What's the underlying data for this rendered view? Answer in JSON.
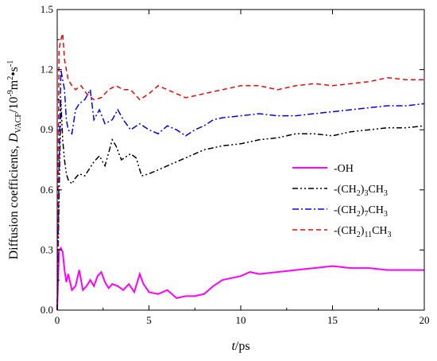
{
  "chart_data": {
    "type": "line",
    "xlabel_italic": "t",
    "xlabel_unit": "/ps",
    "ylabel_main": "Diffusion coefficients, ",
    "ylabel_symbol": "D",
    "ylabel_symbol_sub": "VACF",
    "ylabel_unit_a": "/10",
    "ylabel_unit_exp": "-9",
    "ylabel_unit_b": "m",
    "ylabel_unit_b_exp": "2",
    "ylabel_unit_c": "•s",
    "ylabel_unit_c_exp": "-1",
    "xlim": [
      0,
      20
    ],
    "ylim": [
      0,
      1.5
    ],
    "xticks": [
      0,
      5,
      10,
      15,
      20
    ],
    "xtick_labels": [
      "0",
      "5",
      "10",
      "15",
      "20"
    ],
    "yticks": [
      0.0,
      0.3,
      0.6,
      0.9,
      1.2,
      1.5
    ],
    "ytick_labels": [
      "0.0",
      "0.3",
      "0.6",
      "0.9",
      "1.2",
      "1.5"
    ],
    "grid": false,
    "legend_position": "center-right",
    "series": [
      {
        "legend_parts": [
          "-OH"
        ],
        "color": "#ff00ff",
        "style": "solid",
        "x": [
          0,
          0.1,
          0.2,
          0.3,
          0.4,
          0.5,
          0.6,
          0.8,
          1.0,
          1.2,
          1.4,
          1.6,
          1.8,
          2.0,
          2.2,
          2.4,
          2.6,
          2.8,
          3.0,
          3.3,
          3.6,
          3.9,
          4.2,
          4.5,
          4.7,
          5.0,
          5.5,
          6.0,
          6.5,
          7.0,
          7.5,
          8.0,
          8.5,
          9.0,
          9.5,
          10.0,
          10.5,
          11.0,
          12.0,
          13.0,
          14.0,
          15.0,
          16.0,
          17.0,
          18.0,
          19.0,
          20.0
        ],
        "y": [
          0.0,
          0.3,
          0.31,
          0.29,
          0.2,
          0.14,
          0.18,
          0.1,
          0.12,
          0.2,
          0.1,
          0.12,
          0.15,
          0.12,
          0.17,
          0.19,
          0.14,
          0.11,
          0.13,
          0.12,
          0.1,
          0.13,
          0.09,
          0.18,
          0.13,
          0.09,
          0.08,
          0.1,
          0.06,
          0.07,
          0.07,
          0.08,
          0.12,
          0.15,
          0.16,
          0.17,
          0.19,
          0.18,
          0.19,
          0.2,
          0.21,
          0.22,
          0.21,
          0.21,
          0.2,
          0.2,
          0.2
        ]
      },
      {
        "legend_parts": [
          "-(CH",
          "2",
          ")",
          "3",
          "CH",
          "3"
        ],
        "color": "#000000",
        "style": "dashdotdot",
        "x": [
          0,
          0.1,
          0.2,
          0.3,
          0.4,
          0.5,
          0.6,
          0.8,
          1.0,
          1.2,
          1.5,
          2.0,
          2.3,
          2.6,
          3.0,
          3.2,
          3.5,
          4.0,
          4.3,
          4.6,
          5.0,
          5.5,
          6.0,
          6.5,
          7.0,
          7.5,
          8.0,
          9.0,
          10.0,
          11.0,
          12.0,
          13.0,
          14.0,
          15.0,
          16.0,
          17.0,
          18.0,
          19.0,
          20.0
        ],
        "y": [
          0.0,
          0.55,
          1.05,
          0.85,
          0.75,
          0.68,
          0.65,
          0.63,
          0.66,
          0.68,
          0.67,
          0.74,
          0.77,
          0.72,
          0.85,
          0.82,
          0.75,
          0.78,
          0.76,
          0.67,
          0.68,
          0.7,
          0.72,
          0.74,
          0.76,
          0.78,
          0.8,
          0.82,
          0.83,
          0.85,
          0.86,
          0.88,
          0.88,
          0.87,
          0.89,
          0.9,
          0.91,
          0.91,
          0.92
        ]
      },
      {
        "legend_parts": [
          "-(CH",
          "2",
          ")",
          "7",
          "CH",
          "3"
        ],
        "color": "#0000ff",
        "style": "dashdot",
        "x": [
          0,
          0.1,
          0.2,
          0.3,
          0.4,
          0.5,
          0.6,
          0.8,
          1.0,
          1.2,
          1.5,
          1.8,
          2.0,
          2.3,
          2.6,
          3.0,
          3.3,
          3.6,
          4.0,
          4.5,
          5.0,
          5.5,
          6.0,
          6.5,
          7.0,
          7.5,
          8.0,
          8.5,
          9.0,
          10.0,
          11.0,
          12.0,
          13.0,
          14.0,
          15.0,
          16.0,
          17.0,
          18.0,
          19.0,
          20.0
        ],
        "y": [
          0.0,
          0.7,
          1.2,
          1.15,
          1.1,
          0.95,
          0.9,
          0.88,
          1.0,
          1.03,
          1.05,
          1.1,
          0.95,
          1.0,
          0.93,
          0.95,
          1.0,
          0.95,
          0.9,
          0.93,
          0.9,
          0.88,
          0.92,
          0.9,
          0.87,
          0.9,
          0.92,
          0.95,
          0.96,
          0.97,
          0.98,
          0.97,
          0.97,
          0.98,
          0.99,
          1.0,
          1.01,
          1.02,
          1.02,
          1.03
        ]
      },
      {
        "legend_parts": [
          "-(CH",
          "2",
          ")",
          "11",
          "CH",
          "3"
        ],
        "color": "#ff0000",
        "style": "dashed",
        "x": [
          0,
          0.1,
          0.2,
          0.3,
          0.4,
          0.5,
          0.6,
          0.8,
          1.0,
          1.3,
          1.6,
          2.0,
          2.4,
          2.8,
          3.2,
          3.6,
          4.0,
          4.5,
          5.0,
          5.5,
          6.0,
          6.5,
          7.0,
          7.5,
          8.0,
          9.0,
          10.0,
          11.0,
          12.0,
          13.0,
          14.0,
          15.0,
          16.0,
          17.0,
          18.0,
          19.0,
          20.0
        ],
        "y": [
          0.0,
          1.3,
          1.35,
          1.38,
          1.25,
          1.2,
          1.15,
          1.12,
          1.1,
          1.12,
          1.08,
          1.05,
          1.06,
          1.1,
          1.12,
          1.1,
          1.1,
          1.05,
          1.08,
          1.12,
          1.1,
          1.08,
          1.06,
          1.07,
          1.08,
          1.1,
          1.12,
          1.12,
          1.1,
          1.12,
          1.13,
          1.12,
          1.13,
          1.14,
          1.16,
          1.15,
          1.15
        ]
      }
    ]
  }
}
